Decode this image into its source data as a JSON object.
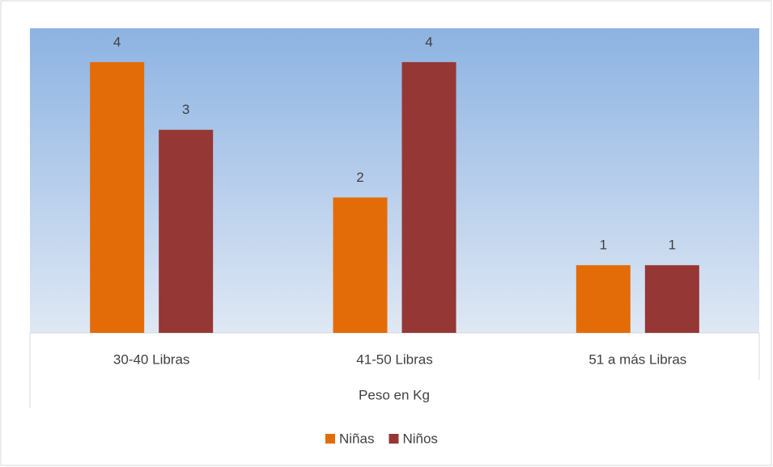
{
  "chart_data": {
    "type": "bar",
    "x_label": "Peso en Kg",
    "categories": [
      "30-40 Libras",
      "41-50 Libras",
      "51 a más Libras"
    ],
    "series": [
      {
        "name": "Niñas",
        "color": "#e36c09",
        "values": [
          4,
          2,
          1
        ]
      },
      {
        "name": "Niños",
        "color": "#953735",
        "values": [
          3,
          4,
          1
        ]
      }
    ],
    "ylim": [
      0,
      4.5
    ],
    "legend": "bottom"
  }
}
